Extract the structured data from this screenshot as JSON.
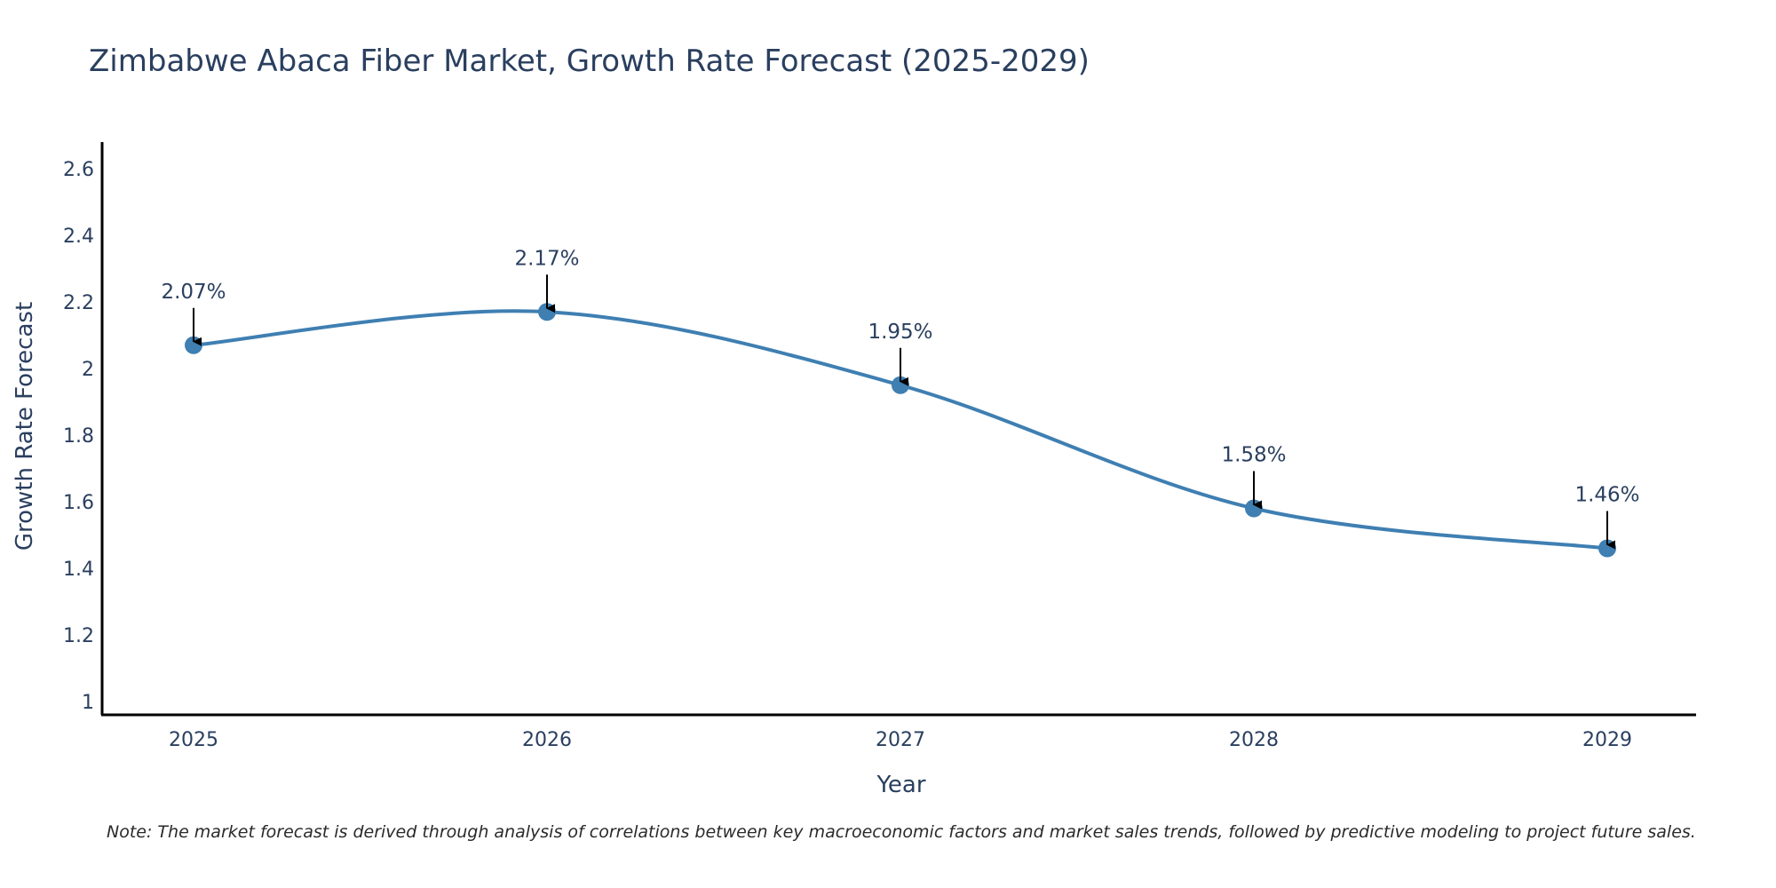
{
  "chart_data": {
    "type": "line",
    "title": "Zimbabwe Abaca Fiber Market, Growth Rate Forecast (2025-2029)",
    "xlabel": "Year",
    "ylabel": "Growth Rate Forecast",
    "categories": [
      "2025",
      "2026",
      "2027",
      "2028",
      "2029"
    ],
    "values": [
      2.07,
      2.17,
      1.95,
      1.58,
      1.46
    ],
    "data_labels": [
      "2.07%",
      "2.17%",
      "1.95%",
      "1.58%",
      "1.46%"
    ],
    "y_ticks": [
      1,
      1.2,
      1.4,
      1.6,
      1.8,
      2,
      2.2,
      2.4,
      2.6
    ],
    "y_tick_labels": [
      "1",
      "1.2",
      "1.4",
      "1.6",
      "1.8",
      "2",
      "2.2",
      "2.4",
      "2.6"
    ],
    "ylim": [
      0.96,
      2.68
    ],
    "grid": false,
    "line_color": "#3f7fb2",
    "marker_color": "#3f7fb2",
    "line_shape": "spline"
  },
  "note": "Note: The market forecast is derived through analysis of correlations between key macroeconomic factors and market sales trends, followed by predictive modeling to project future sales."
}
